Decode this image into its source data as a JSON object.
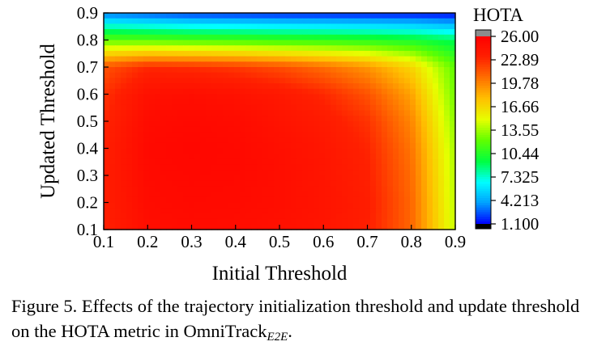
{
  "chart_data": {
    "type": "heatmap",
    "title": "",
    "xlabel": "Initial Threshold",
    "ylabel": "Updated Threshold",
    "xlim": [
      0.1,
      0.9
    ],
    "ylim": [
      0.1,
      0.9
    ],
    "x_ticks": [
      "0.1",
      "0.2",
      "0.3",
      "0.4",
      "0.5",
      "0.6",
      "0.7",
      "0.8",
      "0.9"
    ],
    "y_ticks": [
      "0.1",
      "0.2",
      "0.3",
      "0.4",
      "0.5",
      "0.6",
      "0.7",
      "0.8",
      "0.9"
    ],
    "x": [
      0.1,
      0.2,
      0.3,
      0.4,
      0.5,
      0.6,
      0.7,
      0.8,
      0.9
    ],
    "y": [
      0.1,
      0.2,
      0.3,
      0.4,
      0.5,
      0.6,
      0.7,
      0.8,
      0.9
    ],
    "z": [
      [
        23.3,
        24.8,
        25.0,
        24.9,
        24.6,
        24.2,
        23.4,
        20.8,
        14.2
      ],
      [
        23.4,
        25.0,
        25.2,
        25.1,
        24.8,
        24.3,
        23.5,
        20.8,
        14.0
      ],
      [
        23.4,
        25.1,
        25.3,
        25.2,
        24.8,
        24.2,
        23.3,
        20.6,
        13.8
      ],
      [
        23.3,
        25.2,
        25.4,
        25.2,
        24.7,
        24.1,
        23.1,
        20.3,
        13.5
      ],
      [
        23.0,
        25.0,
        25.2,
        25.0,
        24.4,
        23.7,
        22.6,
        19.7,
        13.0
      ],
      [
        22.6,
        24.6,
        24.8,
        24.5,
        23.9,
        23.0,
        21.5,
        18.7,
        12.4
      ],
      [
        21.5,
        23.0,
        22.8,
        22.4,
        21.7,
        20.6,
        19.2,
        16.8,
        12.0
      ],
      [
        12.0,
        11.8,
        11.5,
        11.3,
        11.0,
        10.8,
        10.5,
        10.0,
        9.0
      ],
      [
        3.0,
        2.5,
        2.0,
        1.8,
        1.6,
        1.5,
        1.4,
        1.3,
        1.1
      ]
    ],
    "colorbar": {
      "title": "HOTA",
      "min": 1.1,
      "max": 26.0,
      "tick_labels": [
        "26.00",
        "22.89",
        "19.78",
        "16.66",
        "13.55",
        "10.44",
        "7.325",
        "4.213",
        "1.100"
      ],
      "colors": [
        "#0000ff",
        "#00a0ff",
        "#00ffff",
        "#00ff40",
        "#60ff00",
        "#e6ff00",
        "#ffc000",
        "#ff7000",
        "#ff2000",
        "#ff0000"
      ],
      "overflow_color": "#8c8c8c",
      "underflow_color": "#000000"
    },
    "grid": false
  },
  "caption": {
    "text": "Figure 5. Effects of the trajectory initialization threshold and update threshold on the HOTA metric in OmniTrack",
    "subscript": "E2E",
    "end": "."
  }
}
